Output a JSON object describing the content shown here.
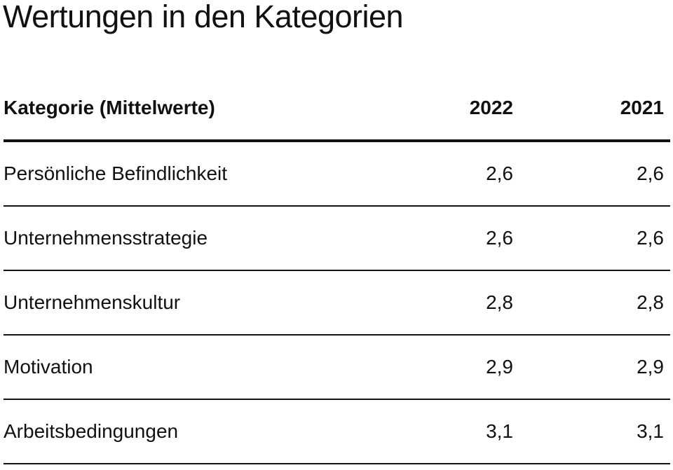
{
  "title": "Wertungen in den Kategorien",
  "table": {
    "headers": [
      "Kategorie (Mittelwerte)",
      "2022",
      "2021"
    ],
    "rows": [
      {
        "label": "Persönliche Befindlichkeit",
        "y2022": "2,6",
        "y2021": "2,6"
      },
      {
        "label": "Unternehmensstrategie",
        "y2022": "2,6",
        "y2021": "2,6"
      },
      {
        "label": "Unternehmenskultur",
        "y2022": "2,8",
        "y2021": "2,8"
      },
      {
        "label": "Motivation",
        "y2022": "2,9",
        "y2021": "2,9"
      },
      {
        "label": "Arbeitsbedingungen",
        "y2022": "3,1",
        "y2021": "3,1"
      }
    ]
  }
}
